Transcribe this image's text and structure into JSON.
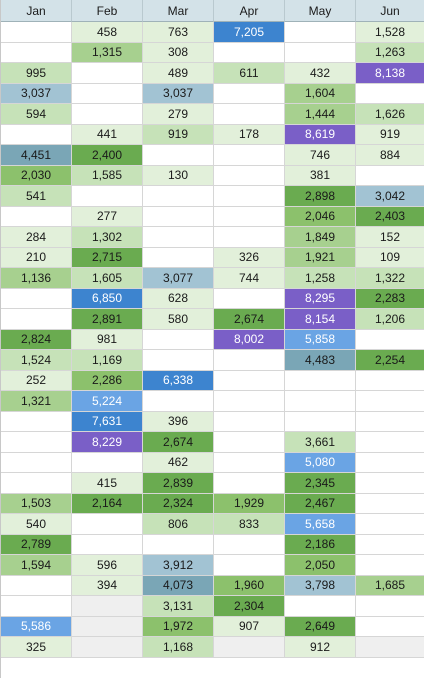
{
  "columns": [
    "Jan",
    "Feb",
    "Mar",
    "Apr",
    "May",
    "Jun"
  ],
  "colors": {
    "g1": "#e2f0da",
    "g2": "#c6e2b8",
    "g3": "#a7d08f",
    "g4": "#8cc16c",
    "g5": "#6aab50",
    "g6": "#5a9b44",
    "blue1": "#a2c3d3",
    "blue2": "#7aa6b6",
    "blue3": "#6aa4e4",
    "blue4": "#3d84cf",
    "purple": "#7a5fc7",
    "gray": "#efefef",
    "white": "#ffffff"
  },
  "rows": [
    [
      [
        "",
        "white"
      ],
      [
        "458",
        "g1"
      ],
      [
        "763",
        "g1"
      ],
      [
        "7,205",
        "blue4"
      ],
      [
        "",
        "white"
      ],
      [
        "1,528",
        "g1"
      ]
    ],
    [
      [
        "",
        "white"
      ],
      [
        "1,315",
        "g3"
      ],
      [
        "308",
        "g1"
      ],
      [
        "",
        "white"
      ],
      [
        "",
        "white"
      ],
      [
        "1,263",
        "g2"
      ]
    ],
    [
      [
        "995",
        "g2"
      ],
      [
        "",
        "white"
      ],
      [
        "489",
        "g1"
      ],
      [
        "611",
        "g2"
      ],
      [
        "432",
        "g1"
      ],
      [
        "8,138",
        "purple"
      ]
    ],
    [
      [
        "3,037",
        "blue1"
      ],
      [
        "",
        "white"
      ],
      [
        "3,037",
        "blue1"
      ],
      [
        "",
        "white"
      ],
      [
        "1,604",
        "g3"
      ],
      [
        "",
        "white"
      ]
    ],
    [
      [
        "594",
        "g2"
      ],
      [
        "",
        "white"
      ],
      [
        "279",
        "g1"
      ],
      [
        "",
        "white"
      ],
      [
        "1,444",
        "g3"
      ],
      [
        "1,626",
        "g2"
      ]
    ],
    [
      [
        "",
        "white"
      ],
      [
        "441",
        "g1"
      ],
      [
        "919",
        "g2"
      ],
      [
        "178",
        "g1"
      ],
      [
        "8,619",
        "purple"
      ],
      [
        "919",
        "g1"
      ]
    ],
    [
      [
        "4,451",
        "blue2"
      ],
      [
        "2,400",
        "g5"
      ],
      [
        "",
        "white"
      ],
      [
        "",
        "white"
      ],
      [
        "746",
        "g1"
      ],
      [
        "884",
        "g1"
      ]
    ],
    [
      [
        "2,030",
        "g4"
      ],
      [
        "1,585",
        "g2"
      ],
      [
        "130",
        "g1"
      ],
      [
        "",
        "white"
      ],
      [
        "381",
        "g1"
      ],
      [
        "",
        "white"
      ]
    ],
    [
      [
        "541",
        "g2"
      ],
      [
        "",
        "white"
      ],
      [
        "",
        "white"
      ],
      [
        "",
        "white"
      ],
      [
        "2,898",
        "g5"
      ],
      [
        "3,042",
        "blue1"
      ]
    ],
    [
      [
        "",
        "white"
      ],
      [
        "277",
        "g1"
      ],
      [
        "",
        "white"
      ],
      [
        "",
        "white"
      ],
      [
        "2,046",
        "g4"
      ],
      [
        "2,403",
        "g5"
      ]
    ],
    [
      [
        "284",
        "g1"
      ],
      [
        "1,302",
        "g2"
      ],
      [
        "",
        "white"
      ],
      [
        "",
        "white"
      ],
      [
        "1,849",
        "g3"
      ],
      [
        "152",
        "g1"
      ]
    ],
    [
      [
        "210",
        "g1"
      ],
      [
        "2,715",
        "g5"
      ],
      [
        "",
        "white"
      ],
      [
        "326",
        "g1"
      ],
      [
        "1,921",
        "g3"
      ],
      [
        "109",
        "g1"
      ]
    ],
    [
      [
        "1,136",
        "g3"
      ],
      [
        "1,605",
        "g2"
      ],
      [
        "3,077",
        "blue1"
      ],
      [
        "744",
        "g1"
      ],
      [
        "1,258",
        "g2"
      ],
      [
        "1,322",
        "g2"
      ]
    ],
    [
      [
        "",
        "white"
      ],
      [
        "6,850",
        "blue4"
      ],
      [
        "628",
        "g1"
      ],
      [
        "",
        "white"
      ],
      [
        "8,295",
        "purple"
      ],
      [
        "2,283",
        "g5"
      ]
    ],
    [
      [
        "",
        "white"
      ],
      [
        "2,891",
        "g5"
      ],
      [
        "580",
        "g1"
      ],
      [
        "2,674",
        "g5"
      ],
      [
        "8,154",
        "purple"
      ],
      [
        "1,206",
        "g2"
      ]
    ],
    [
      [
        "2,824",
        "g5"
      ],
      [
        "981",
        "g1"
      ],
      [
        "",
        "white"
      ],
      [
        "8,002",
        "purple"
      ],
      [
        "5,858",
        "blue3"
      ],
      [
        "",
        "white"
      ]
    ],
    [
      [
        "1,524",
        "g2"
      ],
      [
        "1,169",
        "g2"
      ],
      [
        "",
        "white"
      ],
      [
        "",
        "white"
      ],
      [
        "4,483",
        "blue2"
      ],
      [
        "2,254",
        "g5"
      ]
    ],
    [
      [
        "252",
        "g1"
      ],
      [
        "2,286",
        "g4"
      ],
      [
        "6,338",
        "blue4"
      ],
      [
        "",
        "white"
      ],
      [
        "",
        "white"
      ],
      [
        "",
        "white"
      ]
    ],
    [
      [
        "1,321",
        "g3"
      ],
      [
        "5,224",
        "blue3"
      ],
      [
        "",
        "white"
      ],
      [
        "",
        "white"
      ],
      [
        "",
        "white"
      ],
      [
        "",
        "white"
      ]
    ],
    [
      [
        "",
        "white"
      ],
      [
        "7,631",
        "blue4"
      ],
      [
        "396",
        "g1"
      ],
      [
        "",
        "white"
      ],
      [
        "",
        "white"
      ],
      [
        "",
        "white"
      ]
    ],
    [
      [
        "",
        "white"
      ],
      [
        "8,229",
        "purple"
      ],
      [
        "2,674",
        "g5"
      ],
      [
        "",
        "white"
      ],
      [
        "3,661",
        "g2"
      ],
      [
        "",
        "white"
      ]
    ],
    [
      [
        "",
        "white"
      ],
      [
        "",
        "white"
      ],
      [
        "462",
        "g1"
      ],
      [
        "",
        "white"
      ],
      [
        "5,080",
        "blue3"
      ],
      [
        "",
        "white"
      ]
    ],
    [
      [
        "",
        "white"
      ],
      [
        "415",
        "g1"
      ],
      [
        "2,839",
        "g5"
      ],
      [
        "",
        "white"
      ],
      [
        "2,345",
        "g5"
      ],
      [
        "",
        "white"
      ]
    ],
    [
      [
        "1,503",
        "g3"
      ],
      [
        "2,164",
        "g5"
      ],
      [
        "2,324",
        "g5"
      ],
      [
        "1,929",
        "g4"
      ],
      [
        "2,467",
        "g5"
      ],
      [
        "",
        "white"
      ]
    ],
    [
      [
        "540",
        "g1"
      ],
      [
        "",
        "white"
      ],
      [
        "806",
        "g2"
      ],
      [
        "833",
        "g2"
      ],
      [
        "5,658",
        "blue3"
      ],
      [
        "",
        "white"
      ]
    ],
    [
      [
        "2,789",
        "g5"
      ],
      [
        "",
        "white"
      ],
      [
        "",
        "white"
      ],
      [
        "",
        "white"
      ],
      [
        "2,186",
        "g5"
      ],
      [
        "",
        "white"
      ]
    ],
    [
      [
        "1,594",
        "g3"
      ],
      [
        "596",
        "g1"
      ],
      [
        "3,912",
        "blue1"
      ],
      [
        "",
        "white"
      ],
      [
        "2,050",
        "g4"
      ],
      [
        "",
        "white"
      ]
    ],
    [
      [
        "",
        "white"
      ],
      [
        "394",
        "g1"
      ],
      [
        "4,073",
        "blue2"
      ],
      [
        "1,960",
        "g4"
      ],
      [
        "3,798",
        "blue1"
      ],
      [
        "1,685",
        "g3"
      ]
    ],
    [
      [
        "",
        "white"
      ],
      [
        "",
        "gray"
      ],
      [
        "3,131",
        "g2"
      ],
      [
        "2,304",
        "g5"
      ],
      [
        "",
        "white"
      ],
      [
        "",
        "white"
      ]
    ],
    [
      [
        "5,586",
        "blue3"
      ],
      [
        "",
        "gray"
      ],
      [
        "1,972",
        "g4"
      ],
      [
        "907",
        "g1"
      ],
      [
        "2,649",
        "g5"
      ],
      [
        "",
        "white"
      ]
    ],
    [
      [
        "325",
        "g1"
      ],
      [
        "",
        "gray"
      ],
      [
        "1,168",
        "g2"
      ],
      [
        "",
        "gray"
      ],
      [
        "912",
        "g1"
      ],
      [
        "",
        "gray"
      ]
    ]
  ]
}
